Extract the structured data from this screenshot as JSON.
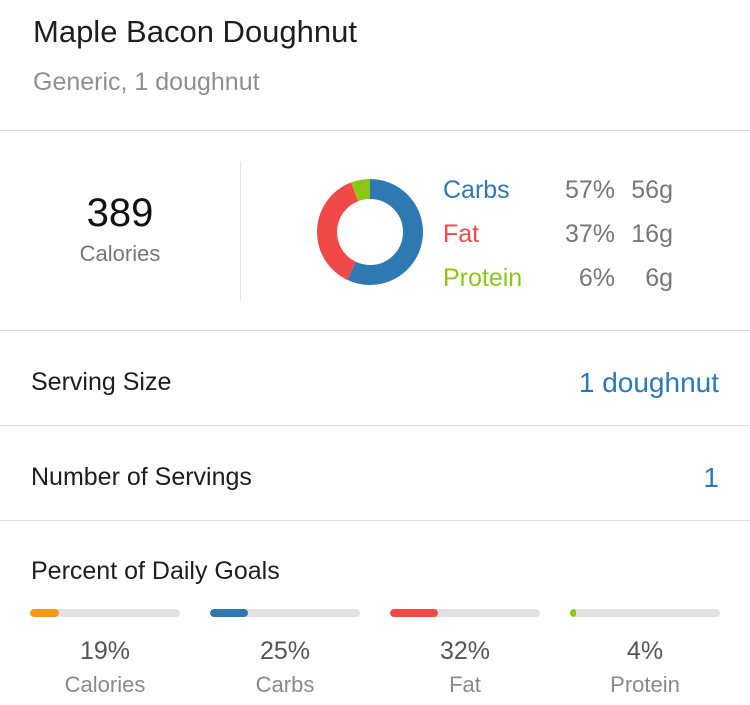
{
  "food": {
    "title": "Maple Bacon Doughnut",
    "subtitle": "Generic, 1 doughnut"
  },
  "summary": {
    "calories_value": "389",
    "calories_label": "Calories",
    "macros": [
      {
        "name": "Carbs",
        "percent": "57%",
        "grams": "56g",
        "fraction": 0.57,
        "color": "#2f79b2"
      },
      {
        "name": "Fat",
        "percent": "37%",
        "grams": "16g",
        "fraction": 0.37,
        "color": "#f14848"
      },
      {
        "name": "Protein",
        "percent": "6%",
        "grams": "6g",
        "fraction": 0.06,
        "color": "#8cc617"
      }
    ]
  },
  "serving_size": {
    "label": "Serving Size",
    "value": "1 doughnut"
  },
  "servings": {
    "label": "Number of Servings",
    "value": "1"
  },
  "daily_goals": {
    "title": "Percent of Daily Goals",
    "items": [
      {
        "percent": "19%",
        "label": "Calories",
        "fraction": 0.19,
        "color": "#f59a17"
      },
      {
        "percent": "25%",
        "label": "Carbs",
        "fraction": 0.25,
        "color": "#2f79b2"
      },
      {
        "percent": "32%",
        "label": "Fat",
        "fraction": 0.32,
        "color": "#f14848"
      },
      {
        "percent": "4%",
        "label": "Protein",
        "fraction": 0.04,
        "color": "#8cc617"
      }
    ],
    "track_color": "#e2e2e2"
  },
  "colors": {
    "accent": "#2a7ab9",
    "divider": "#dcdcdc"
  }
}
